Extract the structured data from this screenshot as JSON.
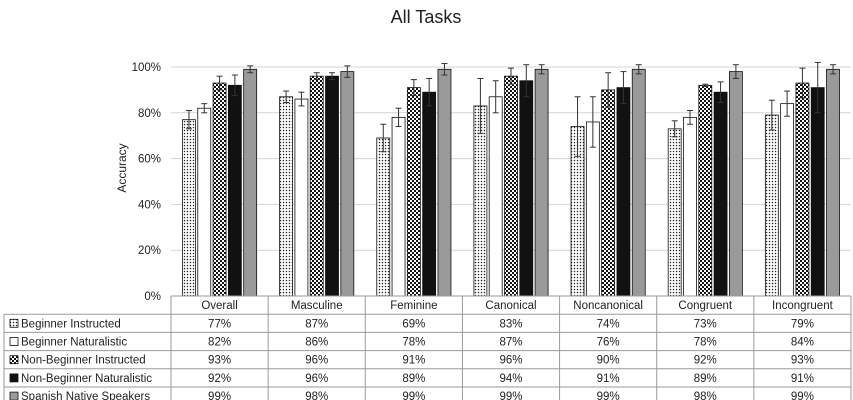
{
  "chart_data": {
    "type": "bar",
    "title": "All Tasks",
    "xlabel": "",
    "ylabel": "Accuracy",
    "ylim": [
      0,
      100
    ],
    "yticks": [
      "0%",
      "20%",
      "40%",
      "60%",
      "80%",
      "100%"
    ],
    "grid": true,
    "legend": "data-table-below",
    "categories": [
      "Overall",
      "Masculine",
      "Feminine",
      "Canonical",
      "Noncanonical",
      "Congruent",
      "Incongruent"
    ],
    "series": [
      {
        "name": "Beginner Instructed",
        "pattern": "dots",
        "values": [
          77,
          87,
          69,
          83,
          74,
          73,
          79
        ],
        "labels": [
          "77%",
          "87%",
          "69%",
          "83%",
          "74%",
          "73%",
          "79%"
        ],
        "errors": [
          4,
          2.5,
          6,
          12,
          13,
          3.5,
          6.5
        ]
      },
      {
        "name": "Beginner Naturalistic",
        "pattern": "white",
        "values": [
          82,
          86,
          78,
          87,
          76,
          78,
          84
        ],
        "labels": [
          "82%",
          "86%",
          "78%",
          "87%",
          "76%",
          "78%",
          "84%"
        ],
        "errors": [
          2,
          3,
          4,
          7,
          11,
          3,
          5.5
        ]
      },
      {
        "name": "Non-Beginner Instructed",
        "pattern": "checker",
        "values": [
          93,
          96,
          91,
          96,
          90,
          92,
          93
        ],
        "labels": [
          "93%",
          "96%",
          "91%",
          "96%",
          "90%",
          "92%",
          "93%"
        ],
        "errors": [
          3,
          1.5,
          3.5,
          3.5,
          7.5,
          0.5,
          6.5
        ]
      },
      {
        "name": "Non-Beginner Naturalistic",
        "pattern": "black",
        "values": [
          92,
          96,
          89,
          94,
          91,
          89,
          91
        ],
        "labels": [
          "92%",
          "96%",
          "89%",
          "94%",
          "91%",
          "89%",
          "91%"
        ],
        "errors": [
          4.5,
          1.5,
          6,
          7,
          7,
          4.5,
          11
        ]
      },
      {
        "name": "Spanish Native Speakers",
        "pattern": "gray",
        "values": [
          99,
          98,
          99,
          99,
          99,
          98,
          99
        ],
        "labels": [
          "99%",
          "98%",
          "99%",
          "99%",
          "99%",
          "98%",
          "99%"
        ],
        "errors": [
          1.5,
          2.5,
          2.5,
          2,
          2,
          3,
          2
        ]
      }
    ],
    "colors": {
      "gray_fill": "#9a9a9a",
      "black_fill": "#111111",
      "grid": "#d4d4d4"
    }
  }
}
